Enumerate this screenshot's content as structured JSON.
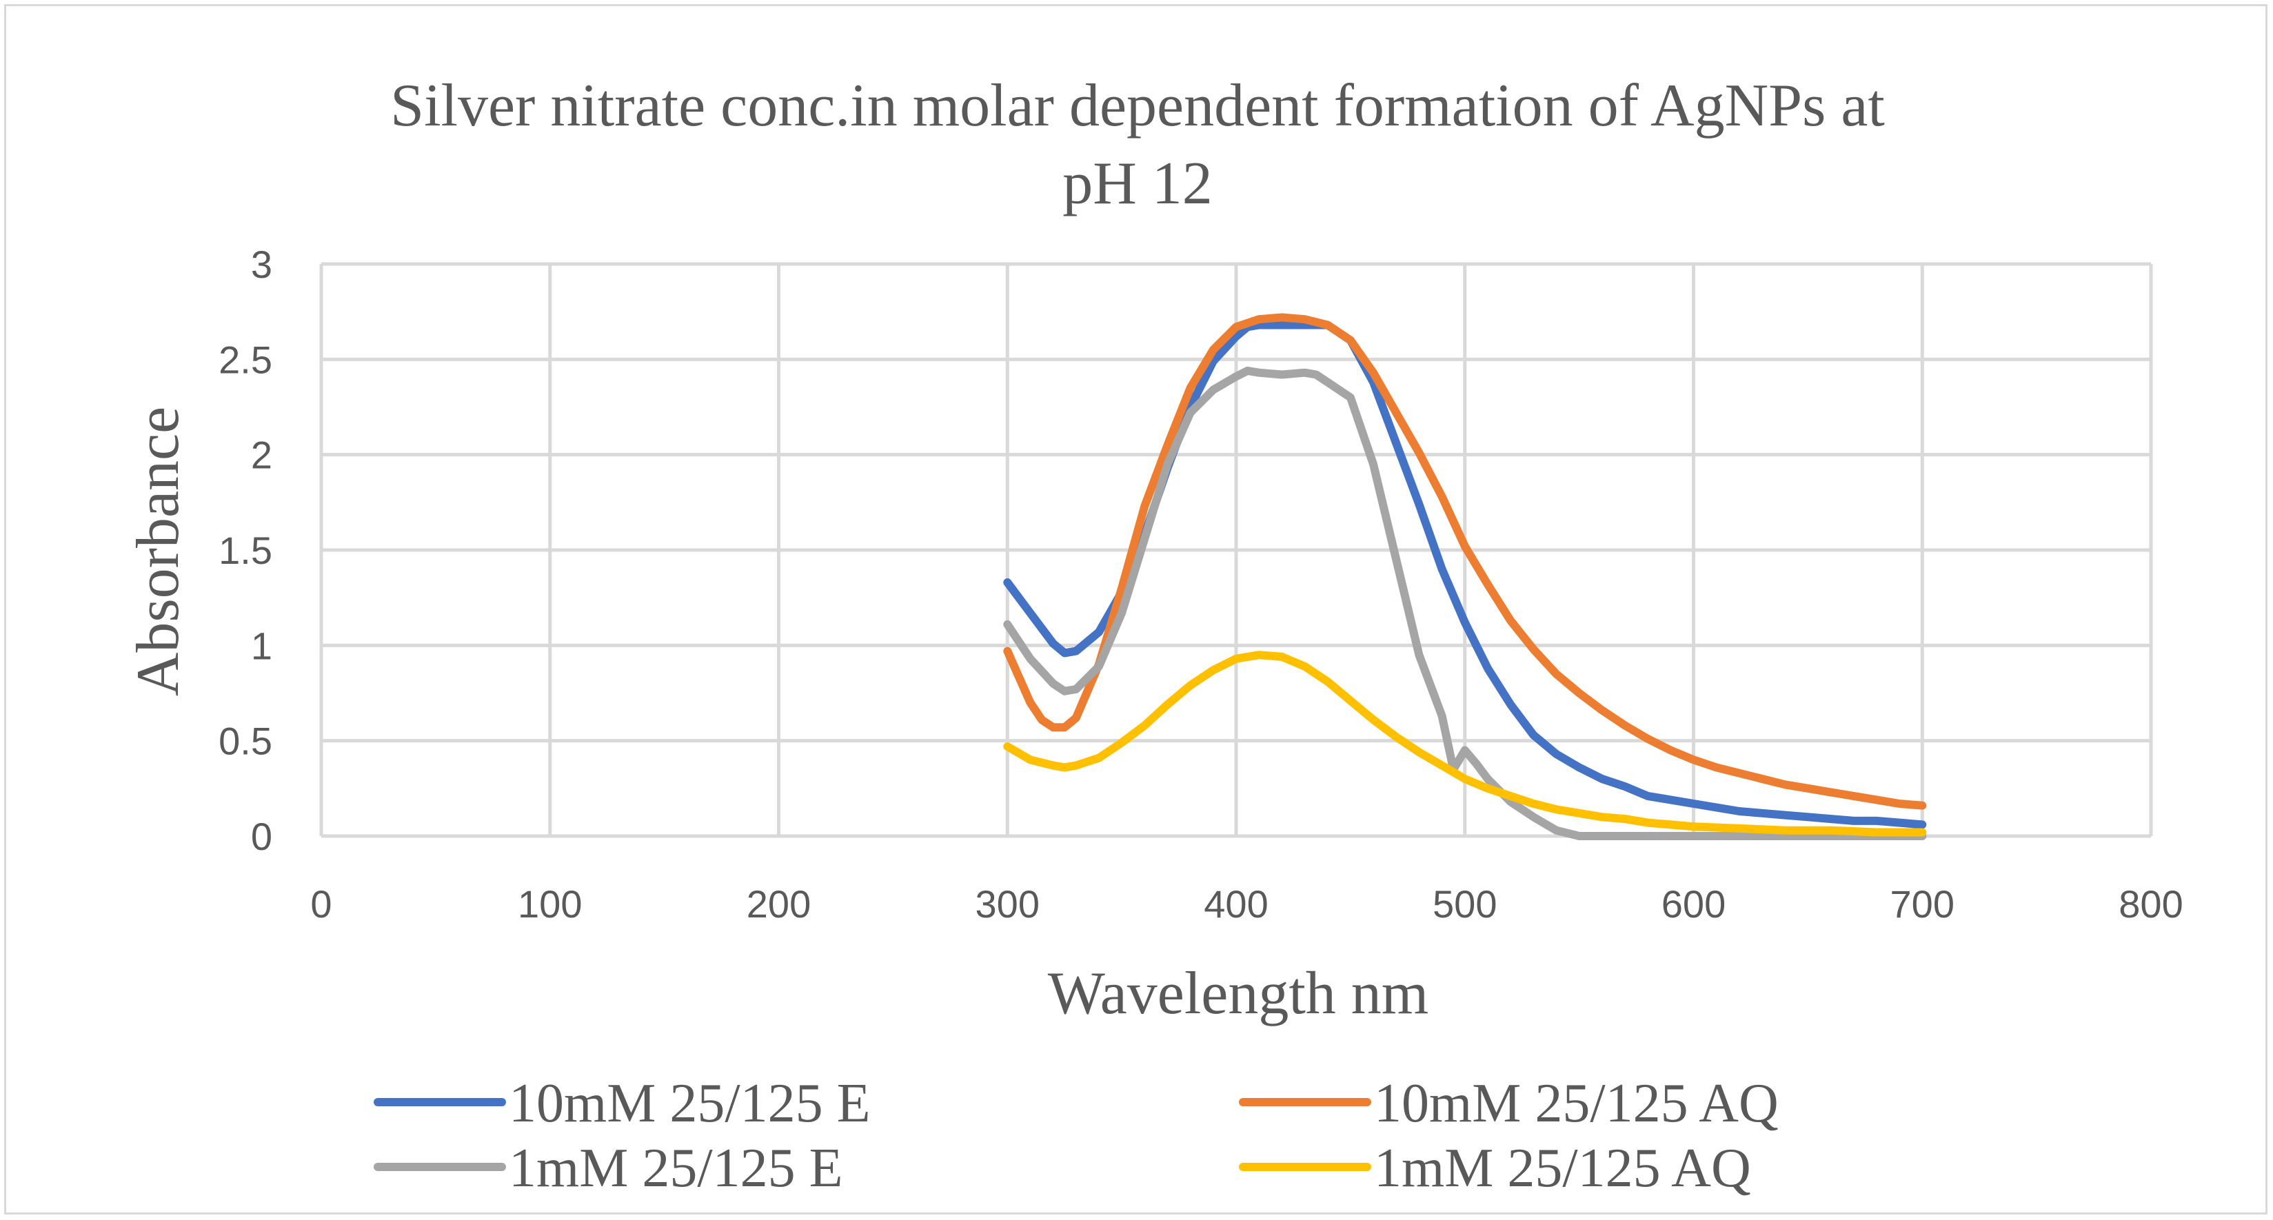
{
  "chart_data": {
    "type": "line",
    "title": "Silver nitrate conc.in molar dependent formation of AgNPs at pH 12",
    "title_lines": [
      "Silver nitrate conc.in molar dependent formation of AgNPs at",
      "pH 12"
    ],
    "xlabel": "Wavelength nm",
    "ylabel": "Absorbance",
    "xlim": [
      0,
      800
    ],
    "ylim": [
      0,
      3
    ],
    "x_ticks": [
      0,
      100,
      200,
      300,
      400,
      500,
      600,
      700,
      800
    ],
    "y_ticks": [
      0,
      0.5,
      1,
      1.5,
      2,
      2.5,
      3
    ],
    "x_tick_labels": [
      "0",
      "100",
      "200",
      "300",
      "400",
      "500",
      "600",
      "700",
      "800"
    ],
    "y_tick_labels": [
      "0",
      "0.5",
      "1",
      "1.5",
      "2",
      "2.5",
      "3"
    ],
    "grid": true,
    "legend_position": "bottom",
    "series": [
      {
        "name": "10mM 25/125 E",
        "color": "#4472c4",
        "points": [
          [
            300,
            1.33
          ],
          [
            310,
            1.17
          ],
          [
            320,
            1.01
          ],
          [
            325,
            0.96
          ],
          [
            330,
            0.97
          ],
          [
            340,
            1.07
          ],
          [
            350,
            1.28
          ],
          [
            360,
            1.58
          ],
          [
            370,
            1.93
          ],
          [
            380,
            2.25
          ],
          [
            390,
            2.49
          ],
          [
            400,
            2.62
          ],
          [
            405,
            2.67
          ],
          [
            410,
            2.68
          ],
          [
            420,
            2.68
          ],
          [
            430,
            2.68
          ],
          [
            440,
            2.68
          ],
          [
            450,
            2.6
          ],
          [
            460,
            2.38
          ],
          [
            470,
            2.06
          ],
          [
            480,
            1.74
          ],
          [
            490,
            1.4
          ],
          [
            500,
            1.12
          ],
          [
            510,
            0.88
          ],
          [
            520,
            0.69
          ],
          [
            530,
            0.53
          ],
          [
            540,
            0.43
          ],
          [
            550,
            0.36
          ],
          [
            560,
            0.3
          ],
          [
            570,
            0.26
          ],
          [
            580,
            0.21
          ],
          [
            590,
            0.19
          ],
          [
            600,
            0.17
          ],
          [
            610,
            0.15
          ],
          [
            620,
            0.13
          ],
          [
            630,
            0.12
          ],
          [
            640,
            0.11
          ],
          [
            650,
            0.1
          ],
          [
            660,
            0.09
          ],
          [
            670,
            0.08
          ],
          [
            680,
            0.08
          ],
          [
            690,
            0.07
          ],
          [
            700,
            0.06
          ]
        ]
      },
      {
        "name": "10mM 25/125 AQ",
        "color": "#ed7d31",
        "points": [
          [
            300,
            0.97
          ],
          [
            310,
            0.7
          ],
          [
            315,
            0.61
          ],
          [
            320,
            0.57
          ],
          [
            325,
            0.57
          ],
          [
            330,
            0.62
          ],
          [
            340,
            0.9
          ],
          [
            350,
            1.3
          ],
          [
            360,
            1.73
          ],
          [
            370,
            2.05
          ],
          [
            380,
            2.35
          ],
          [
            390,
            2.55
          ],
          [
            400,
            2.67
          ],
          [
            410,
            2.71
          ],
          [
            420,
            2.72
          ],
          [
            430,
            2.71
          ],
          [
            440,
            2.68
          ],
          [
            450,
            2.6
          ],
          [
            460,
            2.43
          ],
          [
            470,
            2.22
          ],
          [
            480,
            2.01
          ],
          [
            490,
            1.78
          ],
          [
            500,
            1.52
          ],
          [
            510,
            1.32
          ],
          [
            520,
            1.13
          ],
          [
            530,
            0.98
          ],
          [
            540,
            0.85
          ],
          [
            550,
            0.75
          ],
          [
            560,
            0.66
          ],
          [
            570,
            0.58
          ],
          [
            580,
            0.51
          ],
          [
            590,
            0.45
          ],
          [
            600,
            0.4
          ],
          [
            610,
            0.36
          ],
          [
            620,
            0.33
          ],
          [
            630,
            0.3
          ],
          [
            640,
            0.27
          ],
          [
            650,
            0.25
          ],
          [
            660,
            0.23
          ],
          [
            670,
            0.21
          ],
          [
            680,
            0.19
          ],
          [
            690,
            0.17
          ],
          [
            700,
            0.16
          ]
        ]
      },
      {
        "name": "1mM 25/125 E",
        "color": "#a5a5a5",
        "points": [
          [
            300,
            1.11
          ],
          [
            310,
            0.93
          ],
          [
            320,
            0.8
          ],
          [
            325,
            0.76
          ],
          [
            330,
            0.77
          ],
          [
            340,
            0.89
          ],
          [
            350,
            1.17
          ],
          [
            360,
            1.56
          ],
          [
            370,
            1.95
          ],
          [
            380,
            2.22
          ],
          [
            390,
            2.34
          ],
          [
            400,
            2.41
          ],
          [
            405,
            2.44
          ],
          [
            410,
            2.43
          ],
          [
            420,
            2.42
          ],
          [
            430,
            2.43
          ],
          [
            435,
            2.42
          ],
          [
            440,
            2.38
          ],
          [
            450,
            2.3
          ],
          [
            460,
            1.95
          ],
          [
            470,
            1.45
          ],
          [
            480,
            0.95
          ],
          [
            490,
            0.63
          ],
          [
            495,
            0.35
          ],
          [
            500,
            0.45
          ],
          [
            505,
            0.38
          ],
          [
            510,
            0.3
          ],
          [
            520,
            0.18
          ],
          [
            530,
            0.1
          ],
          [
            540,
            0.03
          ],
          [
            550,
            0.0
          ],
          [
            560,
            0.0
          ],
          [
            580,
            0.0
          ],
          [
            600,
            0.0
          ],
          [
            620,
            0.0
          ],
          [
            640,
            0.0
          ],
          [
            660,
            0.0
          ],
          [
            680,
            0.0
          ],
          [
            700,
            0.0
          ]
        ]
      },
      {
        "name": "1mM 25/125 AQ",
        "color": "#ffc000",
        "points": [
          [
            300,
            0.47
          ],
          [
            310,
            0.4
          ],
          [
            320,
            0.37
          ],
          [
            325,
            0.36
          ],
          [
            330,
            0.37
          ],
          [
            340,
            0.41
          ],
          [
            350,
            0.49
          ],
          [
            360,
            0.58
          ],
          [
            370,
            0.69
          ],
          [
            380,
            0.79
          ],
          [
            390,
            0.87
          ],
          [
            400,
            0.93
          ],
          [
            410,
            0.95
          ],
          [
            420,
            0.94
          ],
          [
            430,
            0.89
          ],
          [
            440,
            0.81
          ],
          [
            450,
            0.71
          ],
          [
            460,
            0.61
          ],
          [
            470,
            0.52
          ],
          [
            480,
            0.44
          ],
          [
            490,
            0.37
          ],
          [
            500,
            0.3
          ],
          [
            510,
            0.25
          ],
          [
            520,
            0.21
          ],
          [
            530,
            0.17
          ],
          [
            540,
            0.14
          ],
          [
            550,
            0.12
          ],
          [
            560,
            0.1
          ],
          [
            570,
            0.09
          ],
          [
            580,
            0.07
          ],
          [
            590,
            0.06
          ],
          [
            600,
            0.05
          ],
          [
            620,
            0.04
          ],
          [
            640,
            0.03
          ],
          [
            660,
            0.03
          ],
          [
            680,
            0.02
          ],
          [
            700,
            0.02
          ]
        ]
      }
    ]
  }
}
